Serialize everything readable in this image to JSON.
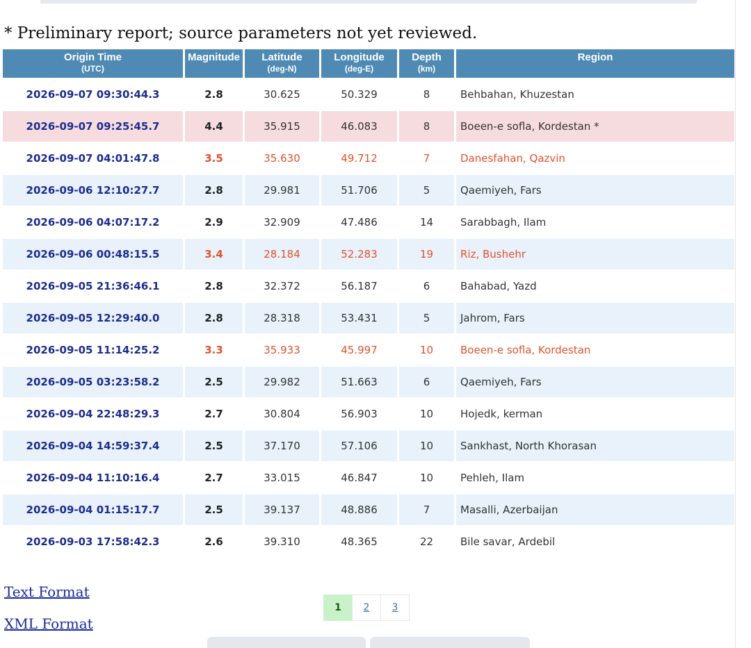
{
  "note": "* Preliminary report; source parameters not yet reviewed.",
  "columns": {
    "origin": {
      "main": "Origin Time",
      "sub": "(UTC)"
    },
    "magnitude": {
      "main": "Magnitude",
      "sub": ""
    },
    "latitude": {
      "main": "Latitude",
      "sub": "(deg-N)"
    },
    "longitude": {
      "main": "Longitude",
      "sub": "(deg-E)"
    },
    "depth": {
      "main": "Depth",
      "sub": "(km)"
    },
    "region": {
      "main": "Region",
      "sub": ""
    }
  },
  "rows": [
    {
      "time": "2026-09-07 09:30:44.3",
      "mag": "2.8",
      "lat": "30.625",
      "lon": "50.329",
      "depth": "8",
      "region": "Behbahan, Khuzestan",
      "style": "white",
      "highlight": false
    },
    {
      "time": "2026-09-07 09:25:45.7",
      "mag": "4.4",
      "lat": "35.915",
      "lon": "46.083",
      "depth": "8",
      "region": "Boeen-e sofla, Kordestan *",
      "style": "pink",
      "highlight": false
    },
    {
      "time": "2026-09-07 04:01:47.8",
      "mag": "3.5",
      "lat": "35.630",
      "lon": "49.712",
      "depth": "7",
      "region": "Danesfahan, Qazvin",
      "style": "white",
      "highlight": true
    },
    {
      "time": "2026-09-06 12:10:27.7",
      "mag": "2.8",
      "lat": "29.981",
      "lon": "51.706",
      "depth": "5",
      "region": "Qaemiyeh, Fars",
      "style": "blue",
      "highlight": false
    },
    {
      "time": "2026-09-06 04:07:17.2",
      "mag": "2.9",
      "lat": "32.909",
      "lon": "47.486",
      "depth": "14",
      "region": "Sarabbagh, Ilam",
      "style": "white",
      "highlight": false
    },
    {
      "time": "2026-09-06 00:48:15.5",
      "mag": "3.4",
      "lat": "28.184",
      "lon": "52.283",
      "depth": "19",
      "region": "Riz, Bushehr",
      "style": "blue",
      "highlight": true
    },
    {
      "time": "2026-09-05 21:36:46.1",
      "mag": "2.8",
      "lat": "32.372",
      "lon": "56.187",
      "depth": "6",
      "region": "Bahabad, Yazd",
      "style": "white",
      "highlight": false
    },
    {
      "time": "2026-09-05 12:29:40.0",
      "mag": "2.8",
      "lat": "28.318",
      "lon": "53.431",
      "depth": "5",
      "region": "Jahrom, Fars",
      "style": "blue",
      "highlight": false
    },
    {
      "time": "2026-09-05 11:14:25.2",
      "mag": "3.3",
      "lat": "35.933",
      "lon": "45.997",
      "depth": "10",
      "region": "Boeen-e sofla, Kordestan",
      "style": "white",
      "highlight": true
    },
    {
      "time": "2026-09-05 03:23:58.2",
      "mag": "2.5",
      "lat": "29.982",
      "lon": "51.663",
      "depth": "6",
      "region": "Qaemiyeh, Fars",
      "style": "blue",
      "highlight": false
    },
    {
      "time": "2026-09-04 22:48:29.3",
      "mag": "2.7",
      "lat": "30.804",
      "lon": "56.903",
      "depth": "10",
      "region": "Hojedk, kerman",
      "style": "white",
      "highlight": false
    },
    {
      "time": "2026-09-04 14:59:37.4",
      "mag": "2.5",
      "lat": "37.170",
      "lon": "57.106",
      "depth": "10",
      "region": "Sankhast, North Khorasan",
      "style": "blue",
      "highlight": false
    },
    {
      "time": "2026-09-04 11:10:16.4",
      "mag": "2.7",
      "lat": "33.015",
      "lon": "46.847",
      "depth": "10",
      "region": "Pehleh, Ilam",
      "style": "white",
      "highlight": false
    },
    {
      "time": "2026-09-04 01:15:17.7",
      "mag": "2.5",
      "lat": "39.137",
      "lon": "48.886",
      "depth": "7",
      "region": "Masalli, Azerbaijan",
      "style": "blue",
      "highlight": false
    },
    {
      "time": "2026-09-03 17:58:42.3",
      "mag": "2.6",
      "lat": "39.310",
      "lon": "48.365",
      "depth": "22",
      "region": "Bile savar, Ardebil",
      "style": "white",
      "highlight": false
    }
  ],
  "links": {
    "text_format": "Text Format",
    "xml_format": "XML Format"
  },
  "pagination": {
    "pages": [
      "1",
      "2",
      "3"
    ],
    "current": "1"
  },
  "colors": {
    "header": "#4f8ab5",
    "highlight_text": "#e2522b",
    "time_text": "#1c2d8f",
    "row_blue": "#e9f1fb",
    "row_pink": "#f7dcdf",
    "page_active": "#c9f2c9"
  }
}
